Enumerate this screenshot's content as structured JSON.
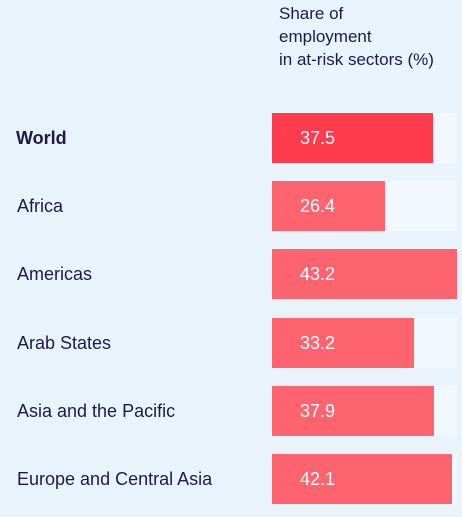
{
  "chart_data": {
    "type": "bar",
    "orientation": "horizontal",
    "title": "Share of\nemployment\nin at-risk sectors (%)",
    "categories": [
      "World",
      "Africa",
      "Americas",
      "Arab States",
      "Asia and the Pacific",
      "Europe and Central Asia"
    ],
    "values": [
      37.5,
      26.4,
      43.2,
      33.2,
      37.9,
      42.1
    ],
    "value_labels": [
      "37.5",
      "26.4",
      "43.2",
      "33.2",
      "37.9",
      "42.1"
    ],
    "bold_category": "World",
    "xlim": [
      0,
      43.2
    ],
    "grid": false,
    "legend": "none",
    "colors": {
      "highlight_bar": "#ff3b4e",
      "bar": "#fe6470",
      "track": "#f1f8ff",
      "background": "#e9f3fc",
      "label_text": "#1d1a4b",
      "value_text": "#ffffff"
    }
  }
}
